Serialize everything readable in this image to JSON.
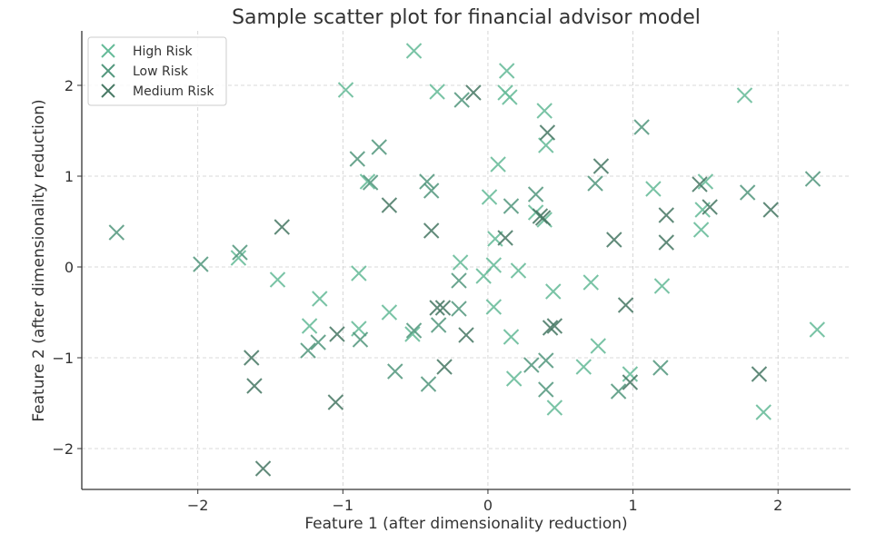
{
  "chart_data": {
    "type": "scatter",
    "title": "Sample scatter plot for financial advisor model",
    "xlabel": "Feature 1 (after dimensionality reduction)",
    "ylabel": "Feature 2 (after dimensionality reduction)",
    "xlim": [
      -2.8,
      2.5
    ],
    "ylim": [
      -2.45,
      2.6
    ],
    "xticks": [
      -2,
      -1,
      0,
      1,
      2
    ],
    "yticks": [
      -2,
      -1,
      0,
      1,
      2
    ],
    "xtick_labels": [
      "−2",
      "−1",
      "0",
      "1",
      "2"
    ],
    "ytick_labels": [
      "−2",
      "−1",
      "0",
      "1",
      "2"
    ],
    "grid": true,
    "legend_position": "top-left",
    "marker": "x",
    "series": [
      {
        "name": "High Risk",
        "color": "#66bb99",
        "points": [
          [
            -0.51,
            2.38
          ],
          [
            0.13,
            2.16
          ],
          [
            -0.98,
            1.95
          ],
          [
            -0.35,
            1.93
          ],
          [
            0.12,
            1.92
          ],
          [
            0.15,
            1.87
          ],
          [
            1.77,
            1.89
          ],
          [
            0.39,
            1.72
          ],
          [
            0.4,
            1.34
          ],
          [
            0.07,
            1.13
          ],
          [
            -0.83,
            0.94
          ],
          [
            1.14,
            0.86
          ],
          [
            1.5,
            0.94
          ],
          [
            1.48,
            0.63
          ],
          [
            0.01,
            0.77
          ],
          [
            0.33,
            0.6
          ],
          [
            0.39,
            0.52
          ],
          [
            1.47,
            0.41
          ],
          [
            -1.72,
            0.1
          ],
          [
            -1.45,
            -0.14
          ],
          [
            -0.89,
            -0.07
          ],
          [
            -0.19,
            0.05
          ],
          [
            0.05,
            0.31
          ],
          [
            0.04,
            0.02
          ],
          [
            -0.03,
            -0.1
          ],
          [
            0.21,
            -0.04
          ],
          [
            -1.16,
            -0.35
          ],
          [
            0.45,
            -0.27
          ],
          [
            0.71,
            -0.17
          ],
          [
            1.2,
            -0.21
          ],
          [
            -0.68,
            -0.5
          ],
          [
            -1.23,
            -0.65
          ],
          [
            -0.89,
            -0.68
          ],
          [
            -0.52,
            -0.74
          ],
          [
            0.16,
            -0.77
          ],
          [
            0.76,
            -0.87
          ],
          [
            0.04,
            -0.44
          ],
          [
            0.18,
            -1.23
          ],
          [
            0.66,
            -1.1
          ],
          [
            0.98,
            -1.18
          ],
          [
            0.46,
            -1.55
          ],
          [
            1.9,
            -1.6
          ],
          [
            2.27,
            -0.69
          ]
        ]
      },
      {
        "name": "Low Risk",
        "color": "#55997f",
        "points": [
          [
            -0.18,
            1.84
          ],
          [
            1.06,
            1.54
          ],
          [
            -0.75,
            1.32
          ],
          [
            -0.9,
            1.19
          ],
          [
            -0.81,
            0.93
          ],
          [
            -0.42,
            0.94
          ],
          [
            -0.39,
            0.84
          ],
          [
            0.74,
            0.92
          ],
          [
            1.79,
            0.82
          ],
          [
            2.24,
            0.97
          ],
          [
            0.33,
            0.8
          ],
          [
            0.16,
            0.67
          ],
          [
            -2.56,
            0.38
          ],
          [
            -1.98,
            0.03
          ],
          [
            -1.71,
            0.16
          ],
          [
            -0.2,
            -0.15
          ],
          [
            -0.2,
            -0.46
          ],
          [
            -0.34,
            -0.64
          ],
          [
            -0.51,
            -0.7
          ],
          [
            -1.24,
            -0.92
          ],
          [
            -0.88,
            -0.8
          ],
          [
            -0.64,
            -1.15
          ],
          [
            -0.41,
            -1.29
          ],
          [
            0.3,
            -1.08
          ],
          [
            0.4,
            -1.03
          ],
          [
            0.4,
            -1.35
          ],
          [
            0.9,
            -1.37
          ],
          [
            1.19,
            -1.11
          ],
          [
            -1.17,
            -0.83
          ]
        ]
      },
      {
        "name": "Medium Risk",
        "color": "#4a7a66",
        "points": [
          [
            -0.1,
            1.92
          ],
          [
            0.41,
            1.48
          ],
          [
            0.78,
            1.11
          ],
          [
            -0.68,
            0.68
          ],
          [
            1.46,
            0.91
          ],
          [
            1.53,
            0.66
          ],
          [
            1.23,
            0.57
          ],
          [
            1.95,
            0.63
          ],
          [
            0.36,
            0.56
          ],
          [
            0.38,
            0.54
          ],
          [
            -1.42,
            0.44
          ],
          [
            -0.39,
            0.4
          ],
          [
            0.12,
            0.32
          ],
          [
            0.87,
            0.3
          ],
          [
            1.23,
            0.27
          ],
          [
            -0.35,
            -0.45
          ],
          [
            -0.31,
            -0.45
          ],
          [
            -0.15,
            -0.75
          ],
          [
            -1.04,
            -0.74
          ],
          [
            0.43,
            -0.67
          ],
          [
            0.46,
            -0.65
          ],
          [
            0.95,
            -0.42
          ],
          [
            -1.63,
            -1.0
          ],
          [
            -1.61,
            -1.31
          ],
          [
            -1.05,
            -1.49
          ],
          [
            -0.3,
            -1.1
          ],
          [
            0.98,
            -1.27
          ],
          [
            1.87,
            -1.18
          ],
          [
            -1.55,
            -2.22
          ]
        ]
      }
    ]
  }
}
